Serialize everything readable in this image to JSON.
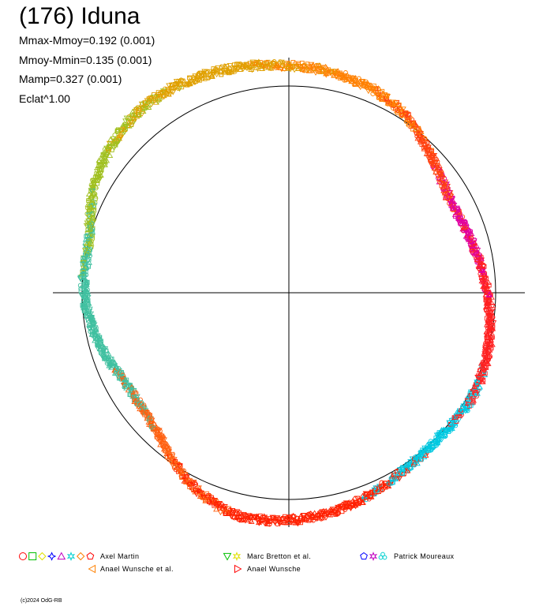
{
  "title": "(176) Iduna",
  "stats": [
    "Mmax-Mmoy=0.192 (0.001)",
    "Mmoy-Mmin=0.135 (0.001)",
    "Mamp=0.327 (0.001)",
    "Eclat^1.00"
  ],
  "legend": [
    {
      "label": "Axel Martin",
      "symbols": [
        {
          "shape": "circle",
          "color": "#ff0000"
        },
        {
          "shape": "square",
          "color": "#00c000"
        },
        {
          "shape": "diamond",
          "color": "#e0e000"
        },
        {
          "shape": "star4",
          "color": "#0000ff"
        },
        {
          "shape": "triangle",
          "color": "#c000c0"
        },
        {
          "shape": "star6",
          "color": "#00d0d0"
        },
        {
          "shape": "diamond",
          "color": "#ff8000"
        },
        {
          "shape": "pentagon",
          "color": "#ff0000"
        }
      ]
    },
    {
      "label": "Anael Wunsche et al.",
      "symbols": [
        {
          "shape": "triangle-left",
          "color": "#ff8000"
        }
      ]
    },
    {
      "label": "Marc Bretton et al.",
      "symbols": [
        {
          "shape": "triangle-down",
          "color": "#00c000"
        },
        {
          "shape": "star6",
          "color": "#e0e000"
        }
      ]
    },
    {
      "label": "Anael Wunsche",
      "symbols": [
        {
          "shape": "triangle-right",
          "color": "#ff0000"
        }
      ]
    },
    {
      "label": "Patrick Moureaux",
      "symbols": [
        {
          "shape": "pentagon",
          "color": "#0000ff"
        },
        {
          "shape": "star6",
          "color": "#c000c0"
        },
        {
          "shape": "clover",
          "color": "#00d0d0"
        }
      ]
    }
  ],
  "copyright": "(c)2024 OdG-RB",
  "chart_data": {
    "type": "polar-lightcurve",
    "reference_circle_amplitude": 1.0,
    "mmax_minus_mmoy": 0.192,
    "mmoy_minus_mmin": 0.135,
    "amplitude": 0.327,
    "curve_description": "Light-curve plotted in polar form; radius is brightness relative to the reference circle, angle is rotational phase.",
    "phase_deg": [
      0,
      15,
      30,
      45,
      60,
      75,
      90,
      105,
      120,
      135,
      150,
      165,
      180,
      195,
      210,
      225,
      240,
      255,
      270,
      285,
      300,
      315,
      330,
      345
    ],
    "relative_radius": [
      0.96,
      0.92,
      0.9,
      0.96,
      1.04,
      1.08,
      1.1,
      1.12,
      1.14,
      1.13,
      1.08,
      1.0,
      0.99,
      0.95,
      0.9,
      0.92,
      1.02,
      1.1,
      1.1,
      1.07,
      1.03,
      1.01,
      1.02,
      1.0
    ]
  }
}
